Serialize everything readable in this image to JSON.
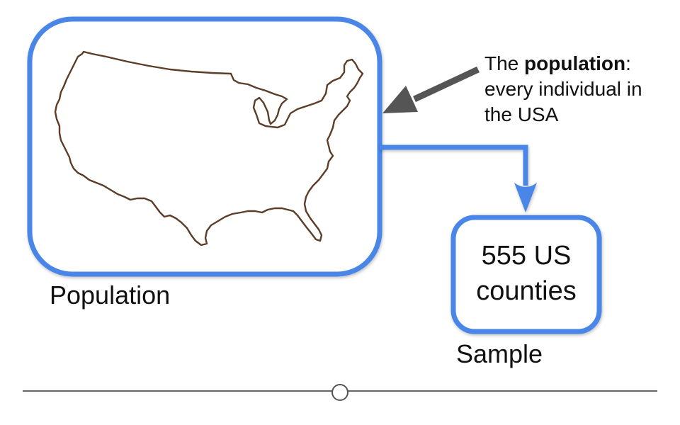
{
  "diagram": {
    "population_label": "Population",
    "sample_label": "Sample",
    "sample_box": {
      "line1": "555 US",
      "line2": "counties"
    },
    "annotation": {
      "prefix": "The ",
      "bold": "population",
      "suffix": ":",
      "line2": "every individual in",
      "line3": "the USA"
    },
    "map_icon": "usa-outline-map"
  },
  "colors": {
    "box_border": "#4a86e8",
    "map_outline": "#5b3d28",
    "arrow": "#555555",
    "text": "#111111",
    "slider_line": "#666666"
  }
}
